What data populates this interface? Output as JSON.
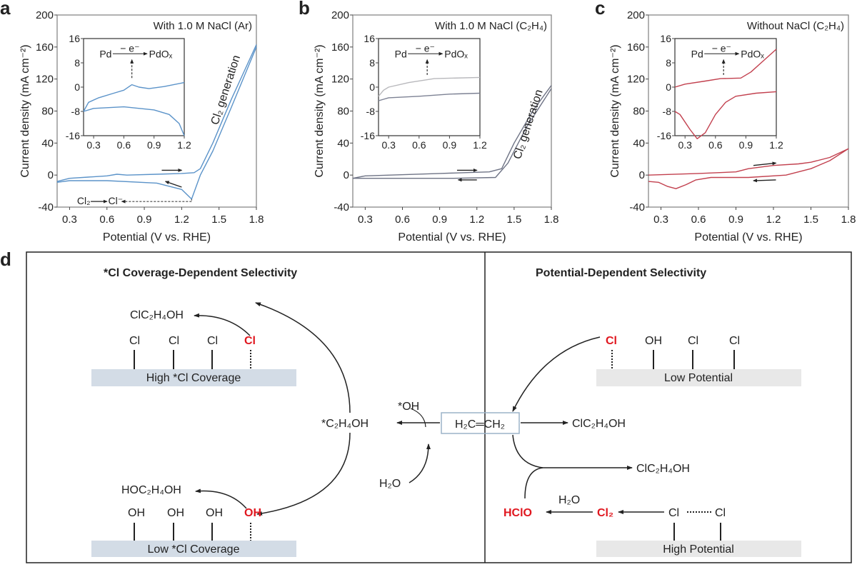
{
  "chart_data": [
    {
      "panel": "a",
      "type": "line",
      "title": "With 1.0 M NaCl (Ar)",
      "xlabel": "Potential (V vs. RHE)",
      "ylabel": "Current density (mA cm⁻²)",
      "xlim": [
        0.2,
        1.8
      ],
      "ylim": [
        -40,
        200
      ],
      "xticks": [
        "0.3",
        "0.6",
        "0.9",
        "1.2",
        "1.5",
        "1.8"
      ],
      "yticks": [
        "-40",
        "0",
        "40",
        "80",
        "120",
        "160",
        "200"
      ],
      "color": "#5b93c9",
      "series": [
        {
          "values": [
            [
              0.2,
              -8
            ],
            [
              0.3,
              -4
            ],
            [
              0.45,
              -2.5
            ],
            [
              0.6,
              -1
            ],
            [
              0.68,
              1
            ],
            [
              0.76,
              0
            ],
            [
              1.0,
              1
            ],
            [
              1.2,
              2
            ],
            [
              1.3,
              3
            ],
            [
              1.35,
              8
            ],
            [
              1.45,
              40
            ],
            [
              1.6,
              95
            ],
            [
              1.8,
              163
            ]
          ]
        },
        {
          "values": [
            [
              1.8,
              160
            ],
            [
              1.6,
              85
            ],
            [
              1.45,
              30
            ],
            [
              1.35,
              0
            ],
            [
              1.28,
              -30
            ],
            [
              1.2,
              -18
            ],
            [
              1.0,
              -10
            ],
            [
              0.6,
              -7
            ],
            [
              0.3,
              -7
            ],
            [
              0.2,
              -9
            ]
          ]
        }
      ],
      "annotations": {
        "generation": "Cl₂ generation",
        "reduct_from": "Cl₂",
        "reduct_to": "Cl⁻"
      },
      "inset": {
        "xlim": [
          0.2,
          1.2
        ],
        "ylim": [
          -16,
          16
        ],
        "xticks": [
          "0.3",
          "0.6",
          "0.9",
          "1.2"
        ],
        "yticks": [
          "-16",
          "-8",
          "0",
          "8",
          "16"
        ],
        "reaction": {
          "from": "Pd",
          "over": "− e⁻",
          "to": "PdOₓ"
        },
        "series": [
          {
            "values": [
              [
                0.2,
                -8
              ],
              [
                0.25,
                -5
              ],
              [
                0.35,
                -3.5
              ],
              [
                0.5,
                -2
              ],
              [
                0.6,
                -1
              ],
              [
                0.68,
                0.8
              ],
              [
                0.75,
                0
              ],
              [
                0.85,
                -0.5
              ],
              [
                1.0,
                0.2
              ],
              [
                1.2,
                1.5
              ]
            ]
          },
          {
            "values": [
              [
                1.2,
                -16
              ],
              [
                1.15,
                -12
              ],
              [
                1.05,
                -9
              ],
              [
                0.9,
                -7.5
              ],
              [
                0.6,
                -6.5
              ],
              [
                0.3,
                -7
              ],
              [
                0.2,
                -8
              ]
            ]
          }
        ]
      }
    },
    {
      "panel": "b",
      "type": "line",
      "title": "With 1.0 M NaCl (C₂H₄)",
      "xlabel": "Potential (V vs. RHE)",
      "ylabel": "Current density (mA cm⁻²)",
      "xlim": [
        0.2,
        1.8
      ],
      "ylim": [
        -40,
        200
      ],
      "xticks": [
        "0.3",
        "0.6",
        "0.9",
        "1.2",
        "1.5",
        "1.8"
      ],
      "yticks": [
        "-40",
        "0",
        "40",
        "80",
        "120",
        "160",
        "200"
      ],
      "color": "#6e7385",
      "series": [
        {
          "values": [
            [
              0.2,
              -4
            ],
            [
              0.3,
              -1
            ],
            [
              0.9,
              2
            ],
            [
              1.3,
              4
            ],
            [
              1.4,
              8
            ],
            [
              1.5,
              40
            ],
            [
              1.65,
              80
            ],
            [
              1.8,
              112
            ]
          ]
        },
        {
          "values": [
            [
              1.8,
              108
            ],
            [
              1.6,
              60
            ],
            [
              1.45,
              15
            ],
            [
              1.35,
              -3
            ],
            [
              1.0,
              -4
            ],
            [
              0.5,
              -4
            ],
            [
              0.2,
              -4
            ]
          ]
        }
      ],
      "annotations": {
        "generation": "Cl₂ generation"
      },
      "inset": {
        "xlim": [
          0.2,
          1.2
        ],
        "ylim": [
          -16,
          16
        ],
        "xticks": [
          "0.3",
          "0.6",
          "0.9",
          "1.2"
        ],
        "yticks": [
          "-16",
          "-8",
          "0",
          "8",
          "16"
        ],
        "reaction": {
          "from": "Pd",
          "over": "− e⁻",
          "to": "PdOₓ"
        },
        "series": [
          {
            "color": "#b8b8bc",
            "values": [
              [
                0.2,
                -3
              ],
              [
                0.25,
                -1
              ],
              [
                0.3,
                0
              ],
              [
                0.5,
                1.5
              ],
              [
                0.75,
                2.8
              ],
              [
                1.2,
                3.2
              ]
            ]
          },
          {
            "color": "#7d8294",
            "values": [
              [
                0.2,
                -4.5
              ],
              [
                0.25,
                -4
              ],
              [
                0.3,
                -3.5
              ],
              [
                0.6,
                -3
              ],
              [
                0.9,
                -2.3
              ],
              [
                1.2,
                -2
              ]
            ]
          }
        ]
      }
    },
    {
      "panel": "c",
      "type": "line",
      "title": "Without NaCl (C₂H₄)",
      "xlabel": "Potential (V vs. RHE)",
      "ylabel": "Current density (mA cm⁻²)",
      "xlim": [
        0.2,
        1.8
      ],
      "ylim": [
        -40,
        200
      ],
      "xticks": [
        "0.3",
        "0.6",
        "0.9",
        "1.2",
        "1.5",
        "1.8"
      ],
      "yticks": [
        "-40",
        "0",
        "40",
        "80",
        "120",
        "160",
        "200"
      ],
      "color": "#c2404e",
      "series": [
        {
          "values": [
            [
              0.2,
              0
            ],
            [
              0.6,
              2
            ],
            [
              0.9,
              4
            ],
            [
              1.0,
              8
            ],
            [
              1.2,
              12
            ],
            [
              1.4,
              14
            ],
            [
              1.5,
              16
            ],
            [
              1.65,
              22
            ],
            [
              1.8,
              33
            ]
          ]
        },
        {
          "values": [
            [
              1.8,
              33
            ],
            [
              1.65,
              18
            ],
            [
              1.5,
              8
            ],
            [
              1.3,
              0
            ],
            [
              1.0,
              -3
            ],
            [
              0.7,
              -3
            ],
            [
              0.58,
              -6
            ],
            [
              0.5,
              -12
            ],
            [
              0.42,
              -17
            ],
            [
              0.35,
              -14
            ],
            [
              0.28,
              -9
            ],
            [
              0.2,
              -8
            ]
          ]
        }
      ],
      "annotations": {},
      "inset": {
        "xlim": [
          0.2,
          1.2
        ],
        "ylim": [
          -16,
          16
        ],
        "xticks": [
          "0.3",
          "0.6",
          "0.9",
          "1.2"
        ],
        "yticks": [
          "-16",
          "-8",
          "0",
          "8",
          "16"
        ],
        "reaction": {
          "from": "Pd",
          "over": "− e⁻",
          "to": "PdOₓ"
        },
        "series": [
          {
            "values": [
              [
                0.2,
                0
              ],
              [
                0.3,
                1
              ],
              [
                0.5,
                2
              ],
              [
                0.65,
                2.8
              ],
              [
                0.85,
                3
              ],
              [
                0.95,
                5
              ],
              [
                1.05,
                8
              ],
              [
                1.2,
                12.5
              ]
            ]
          },
          {
            "values": [
              [
                1.2,
                -1.5
              ],
              [
                1.0,
                -2
              ],
              [
                0.8,
                -3
              ],
              [
                0.7,
                -5
              ],
              [
                0.6,
                -9
              ],
              [
                0.5,
                -15
              ],
              [
                0.42,
                -17
              ],
              [
                0.35,
                -14
              ],
              [
                0.25,
                -9
              ],
              [
                0.2,
                -8
              ]
            ]
          }
        ]
      }
    }
  ],
  "scheme": {
    "panel": "d",
    "left_heading": "*Cl Coverage-Dependent Selectivity",
    "right_heading": "Potential-Dependent Selectivity",
    "left_top": {
      "product": "ClC₂H₄OH",
      "adsorbates": [
        "Cl",
        "Cl",
        "Cl",
        "Cl"
      ],
      "surface": "High *Cl Coverage"
    },
    "left_bottom": {
      "product": "HOC₂H₄OH",
      "adsorbates": [
        "OH",
        "OH",
        "OH",
        "OH"
      ],
      "surface": "Low *Cl Coverage"
    },
    "intermediate": "*C₂H₄OH",
    "ethylene": "H₂C═CH₂",
    "oh": "*OH",
    "water": "H₂O",
    "right_product_1": "ClC₂H₄OH",
    "right_product_2": "ClC₂H₄OH",
    "right_top": {
      "adsorbates": [
        "Cl",
        "OH",
        "Cl",
        "Cl"
      ],
      "surface": "Low Potential"
    },
    "right_bottom": {
      "hclo": "HClO",
      "water": "H₂O",
      "cl2": "Cl₂",
      "cl_left": "Cl",
      "cl_right": "Cl",
      "surface": "High Potential"
    },
    "highlight_color": "#e0171f"
  }
}
